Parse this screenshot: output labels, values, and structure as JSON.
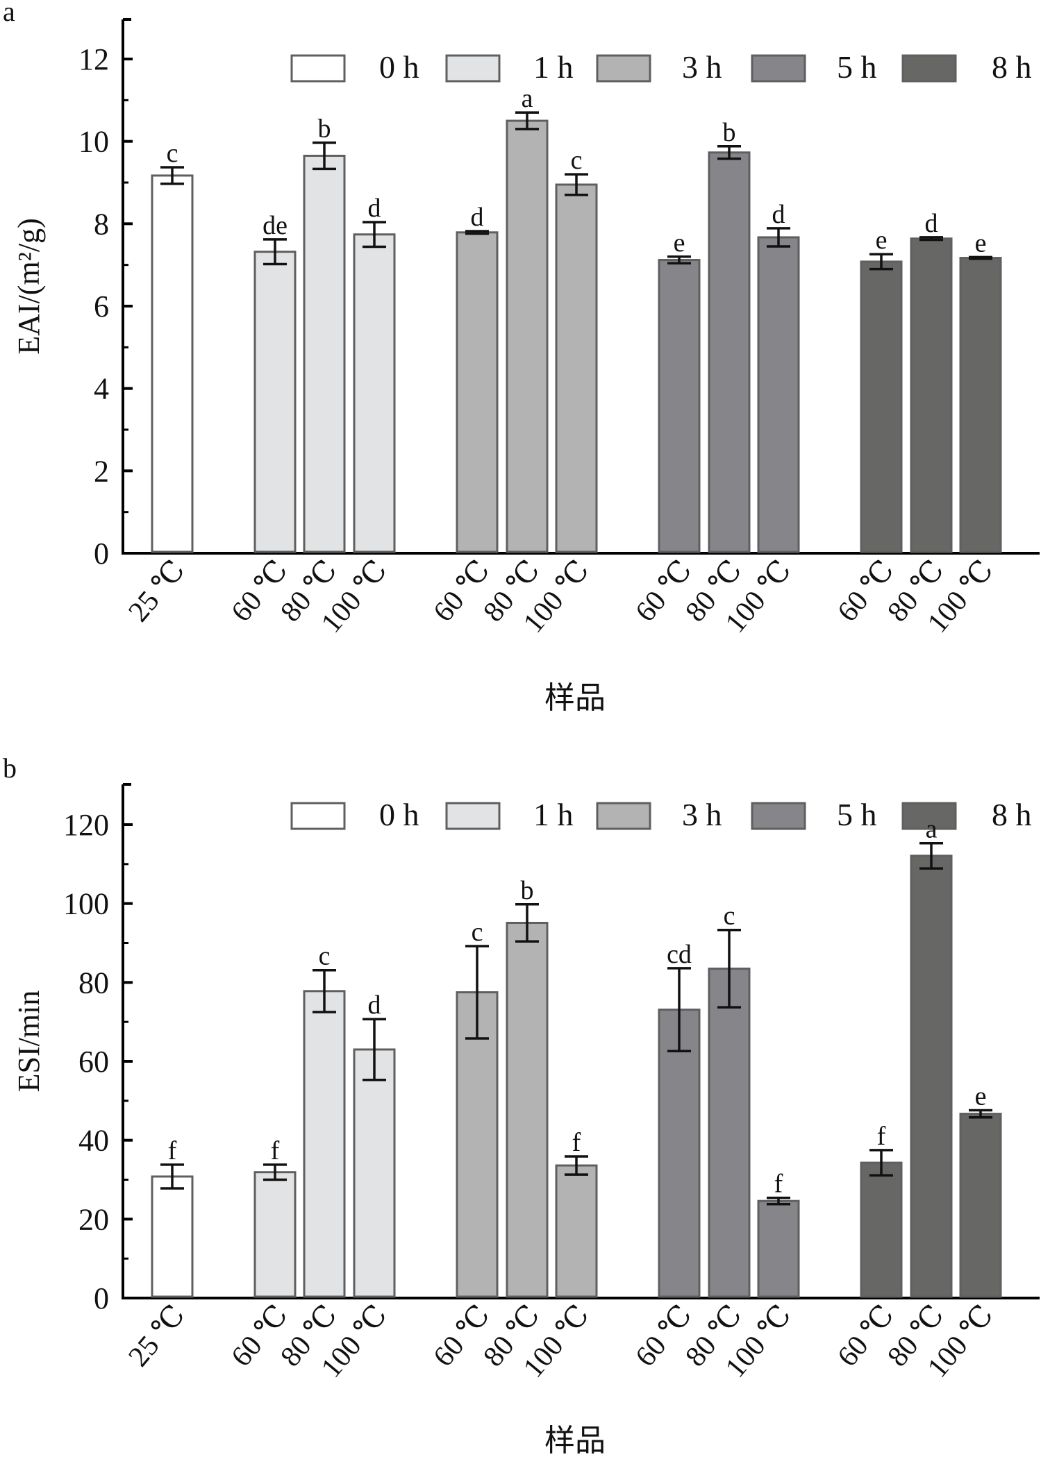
{
  "figure": {
    "x_axis_title": "样品",
    "series_colors": {
      "0 h": "#ffffff",
      "1 h": "#e2e3e4",
      "3 h": "#b3b3b3",
      "5 h": "#86868a",
      "8 h": "#676866"
    },
    "bar_edge_color": "#5f5f5f",
    "axis_color": "#000000"
  },
  "chart_data": [
    {
      "panel": "a",
      "type": "bar",
      "title": "",
      "xlabel": "样品",
      "ylabel": "EAI/(m²/g)",
      "ylim": [
        0,
        13
      ],
      "yticks": [
        0,
        2,
        4,
        6,
        8,
        10,
        12
      ],
      "yminor_step": 1,
      "grid": false,
      "legend": {
        "position": "top",
        "entries": [
          "0 h",
          "1 h",
          "3 h",
          "5 h",
          "8 h"
        ]
      },
      "groups": [
        {
          "series": "0 h",
          "bars": [
            {
              "category": "25 ℃",
              "value": 9.17,
              "error": 0.2,
              "sig": "c"
            }
          ]
        },
        {
          "series": "1 h",
          "bars": [
            {
              "category": "60 ℃",
              "value": 7.32,
              "error": 0.3,
              "sig": "de"
            },
            {
              "category": "80 ℃",
              "value": 9.65,
              "error": 0.32,
              "sig": "b"
            },
            {
              "category": "100 ℃",
              "value": 7.74,
              "error": 0.3,
              "sig": "d"
            }
          ]
        },
        {
          "series": "3 h",
          "bars": [
            {
              "category": "60 ℃",
              "value": 7.79,
              "error": 0.03,
              "sig": "d"
            },
            {
              "category": "80 ℃",
              "value": 10.5,
              "error": 0.2,
              "sig": "a"
            },
            {
              "category": "100 ℃",
              "value": 8.95,
              "error": 0.25,
              "sig": "c"
            }
          ]
        },
        {
          "series": "5 h",
          "bars": [
            {
              "category": "60 ℃",
              "value": 7.12,
              "error": 0.08,
              "sig": "e"
            },
            {
              "category": "80 ℃",
              "value": 9.73,
              "error": 0.15,
              "sig": "b"
            },
            {
              "category": "100 ℃",
              "value": 7.67,
              "error": 0.22,
              "sig": "d"
            }
          ]
        },
        {
          "series": "8 h",
          "bars": [
            {
              "category": "60 ℃",
              "value": 7.08,
              "error": 0.18,
              "sig": "e"
            },
            {
              "category": "80 ℃",
              "value": 7.64,
              "error": 0.03,
              "sig": "d"
            },
            {
              "category": "100 ℃",
              "value": 7.17,
              "error": 0.02,
              "sig": "e"
            }
          ]
        }
      ]
    },
    {
      "panel": "b",
      "type": "bar",
      "title": "",
      "xlabel": "样品",
      "ylabel": "ESI/min",
      "ylim": [
        0,
        130
      ],
      "yticks": [
        0,
        20,
        40,
        60,
        80,
        100,
        120
      ],
      "yminor_step": 10,
      "grid": false,
      "legend": {
        "position": "top",
        "entries": [
          "0 h",
          "1 h",
          "3 h",
          "5 h",
          "8 h"
        ]
      },
      "groups": [
        {
          "series": "0 h",
          "bars": [
            {
              "category": "25 ℃",
              "value": 30.8,
              "error": 3.0,
              "sig": "f"
            }
          ]
        },
        {
          "series": "1 h",
          "bars": [
            {
              "category": "60 ℃",
              "value": 31.9,
              "error": 1.9,
              "sig": "f"
            },
            {
              "category": "80 ℃",
              "value": 77.8,
              "error": 5.3,
              "sig": "c"
            },
            {
              "category": "100 ℃",
              "value": 63.0,
              "error": 7.7,
              "sig": "d"
            }
          ]
        },
        {
          "series": "3 h",
          "bars": [
            {
              "category": "60 ℃",
              "value": 77.5,
              "error": 11.7,
              "sig": "c"
            },
            {
              "category": "80 ℃",
              "value": 95.1,
              "error": 4.7,
              "sig": "b"
            },
            {
              "category": "100 ℃",
              "value": 33.6,
              "error": 2.3,
              "sig": "f"
            }
          ]
        },
        {
          "series": "5 h",
          "bars": [
            {
              "category": "60 ℃",
              "value": 73.1,
              "error": 10.5,
              "sig": "cd"
            },
            {
              "category": "80 ℃",
              "value": 83.5,
              "error": 9.8,
              "sig": "c"
            },
            {
              "category": "100 ℃",
              "value": 24.6,
              "error": 0.8,
              "sig": "f"
            }
          ]
        },
        {
          "series": "8 h",
          "bars": [
            {
              "category": "60 ℃",
              "value": 34.3,
              "error": 3.2,
              "sig": "f"
            },
            {
              "category": "80 ℃",
              "value": 112.1,
              "error": 3.2,
              "sig": "a"
            },
            {
              "category": "100 ℃",
              "value": 46.7,
              "error": 0.9,
              "sig": "e"
            }
          ]
        }
      ]
    }
  ]
}
